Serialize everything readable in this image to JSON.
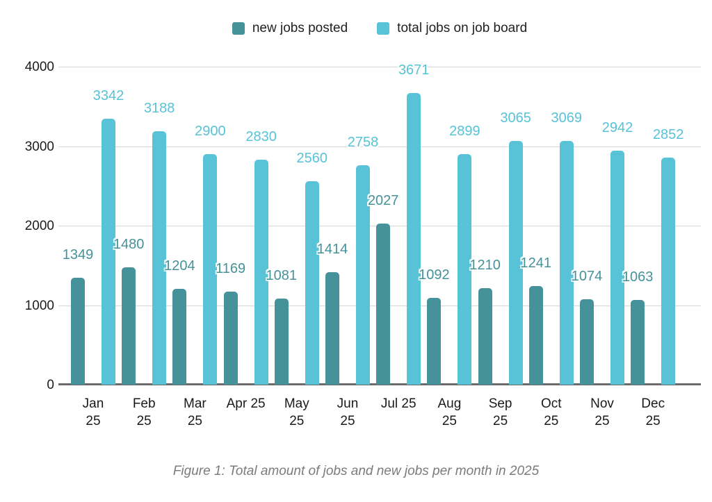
{
  "caption": "Figure 1: Total amount of jobs and new jobs per month in 2025",
  "chart_data": {
    "type": "bar",
    "title": "",
    "xlabel": "",
    "ylabel": "",
    "categories": [
      "Jan 25",
      "Feb 25",
      "Mar 25",
      "Apr 25",
      "May 25",
      "Jun 25",
      "Jul 25",
      "Aug 25",
      "Sep 25",
      "Oct 25",
      "Nov 25",
      "Dec 25"
    ],
    "category_label_lines": [
      [
        "Jan",
        "25"
      ],
      [
        "Feb",
        "25"
      ],
      [
        "Mar",
        "25"
      ],
      [
        "Apr 25"
      ],
      [
        "May",
        "25"
      ],
      [
        "Jun",
        "25"
      ],
      [
        "Jul 25"
      ],
      [
        "Aug",
        "25"
      ],
      [
        "Sep",
        "25"
      ],
      [
        "Oct",
        "25"
      ],
      [
        "Nov",
        "25"
      ],
      [
        "Dec",
        "25"
      ]
    ],
    "series": [
      {
        "name": "new jobs posted",
        "color": "#45929A",
        "values": [
          1349,
          1480,
          1204,
          1169,
          1081,
          1414,
          2027,
          1092,
          1210,
          1241,
          1074,
          1063
        ]
      },
      {
        "name": "total jobs on job board",
        "color": "#58C2D7",
        "values": [
          3342,
          3188,
          2900,
          2830,
          2560,
          2758,
          3671,
          2899,
          3065,
          3069,
          2942,
          2852
        ]
      }
    ],
    "ylim": [
      0,
      4000
    ],
    "yticks": [
      0,
      1000,
      2000,
      3000,
      4000
    ],
    "grid": true,
    "legend_position": "top",
    "data_labels": true,
    "colors": {
      "gridline": "#d7d7d7",
      "axis_line": "#6b6b6b",
      "tick_text": "#1c1c1c",
      "caption_text": "#7b7b7b",
      "background": "#ffffff"
    }
  }
}
